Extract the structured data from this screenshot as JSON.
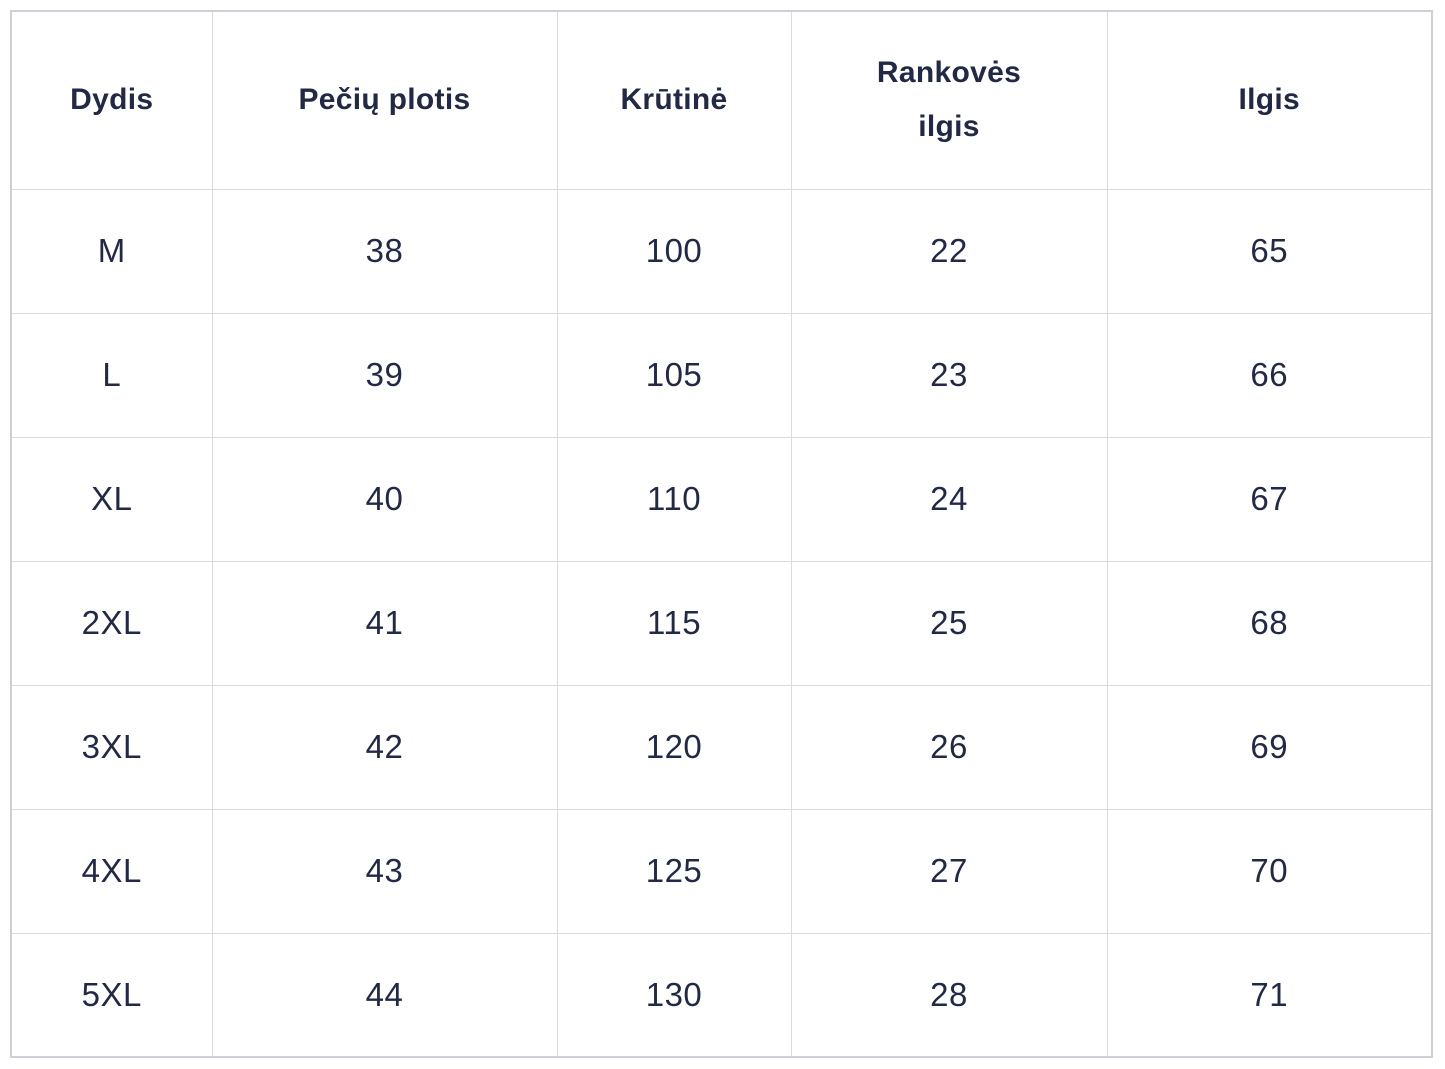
{
  "chart_data": {
    "type": "table",
    "title": "",
    "columns": [
      "Dydis",
      "Pečių plotis",
      "Krūtinė",
      "Rankovės ilgis",
      "Ilgis"
    ],
    "rows": [
      [
        "M",
        "38",
        "100",
        "22",
        "65"
      ],
      [
        "L",
        "39",
        "105",
        "23",
        "66"
      ],
      [
        "XL",
        "40",
        "110",
        "24",
        "67"
      ],
      [
        "2XL",
        "41",
        "115",
        "25",
        "68"
      ],
      [
        "3XL",
        "42",
        "120",
        "26",
        "69"
      ],
      [
        "4XL",
        "43",
        "125",
        "27",
        "70"
      ],
      [
        "5XL",
        "44",
        "130",
        "28",
        "71"
      ]
    ],
    "layout_hints": {
      "header_row": true,
      "grid": "all-borders",
      "text_color": "#212946",
      "border_color": "#dadae2",
      "outer_border_color": "#cfcfda",
      "background": "#ffffff"
    }
  }
}
